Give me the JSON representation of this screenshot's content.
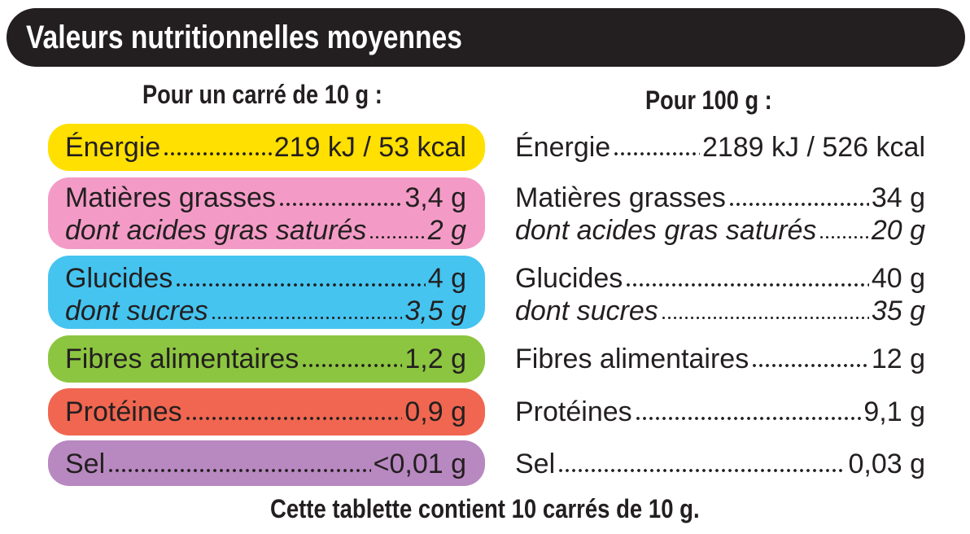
{
  "title": "Valeurs nutritionnelles moyennes",
  "headers": {
    "per_square": "Pour un carré de 10 g  :",
    "per_100g": "Pour 100 g :"
  },
  "colors": {
    "energie": "#ffe000",
    "matieres": "#f39bc6",
    "glucides": "#45c4f0",
    "fibres": "#8cc540",
    "proteines": "#f06650",
    "sel": "#b888c0"
  },
  "rows": {
    "energie": {
      "label": "Énergie",
      "per_square": "219 kJ / 53 kcal",
      "per_100g": "2189 kJ / 526 kcal"
    },
    "matieres_grasses": {
      "label": "Matières grasses",
      "per_square": "3,4 g",
      "per_100g": "34 g"
    },
    "acides_gras_satures": {
      "label": "dont acides gras saturés",
      "per_square": "2 g",
      "per_100g": "20 g"
    },
    "glucides": {
      "label": "Glucides",
      "per_square": "4 g",
      "per_100g": "40 g"
    },
    "sucres": {
      "label": "dont sucres",
      "per_square": "3,5 g",
      "per_100g": "35 g"
    },
    "fibres": {
      "label": "Fibres alimentaires",
      "per_square": "1,2 g",
      "per_100g": "12 g"
    },
    "proteines": {
      "label": "Protéines",
      "per_square": "0,9 g",
      "per_100g": "9,1 g"
    },
    "sel": {
      "label": "Sel",
      "per_square": "<0,01 g",
      "per_100g": "0,03 g"
    }
  },
  "footer": "Cette tablette contient 10 carrés de 10 g."
}
